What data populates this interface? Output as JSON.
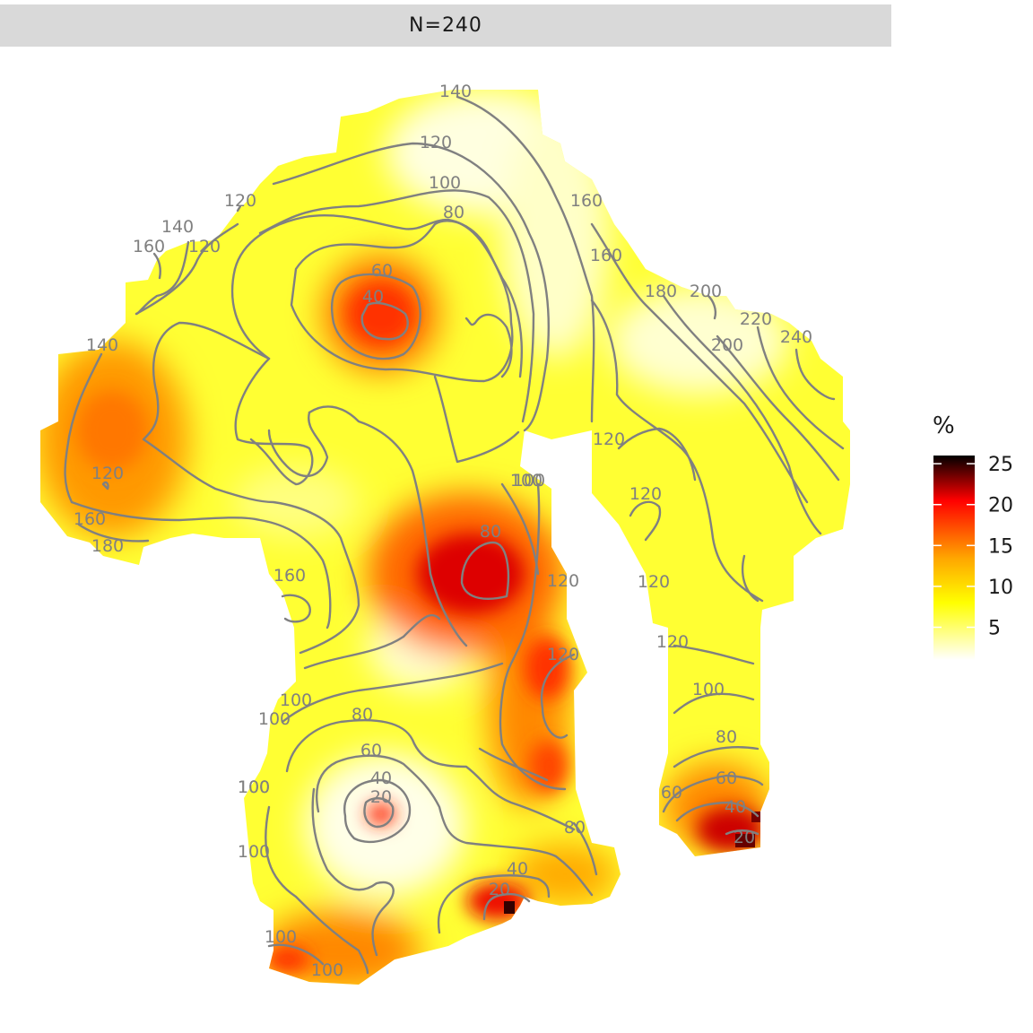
{
  "facet": {
    "label": "N=240"
  },
  "legend": {
    "title": "%",
    "ticks": [
      "25",
      "20",
      "15",
      "10",
      "5"
    ],
    "tick_values": [
      25,
      20,
      15,
      10,
      5
    ],
    "range": [
      1,
      26
    ],
    "colors": [
      "#ffffff",
      "#ffff00",
      "#ffa500",
      "#ff0000",
      "#000000"
    ]
  },
  "chart_data": {
    "type": "heatmap",
    "title": "N=240",
    "fill_label": "%",
    "fill_range": [
      1,
      26
    ],
    "contour_labels": [
      "140",
      "120",
      "100",
      "80",
      "60",
      "40",
      "160",
      "120",
      "140",
      "160",
      "120",
      "140",
      "120",
      "160",
      "180",
      "160",
      "180",
      "200",
      "220",
      "200",
      "240",
      "120",
      "100",
      "80",
      "120",
      "120",
      "120",
      "160",
      "120",
      "120",
      "100",
      "100",
      "100",
      "80",
      "60",
      "40",
      "20",
      "100",
      "100",
      "100",
      "40",
      "20",
      "80",
      "100",
      "80",
      "60",
      "40",
      "20",
      "60",
      "100",
      "100"
    ],
    "hotspots": [
      {
        "label": "40",
        "value": 17
      },
      {
        "label": "80",
        "value": 21
      },
      {
        "label": "120",
        "value": 13
      },
      {
        "label": "20",
        "value": 18
      },
      {
        "label": "20",
        "value": 25
      },
      {
        "label": "20",
        "value": 24
      }
    ]
  }
}
